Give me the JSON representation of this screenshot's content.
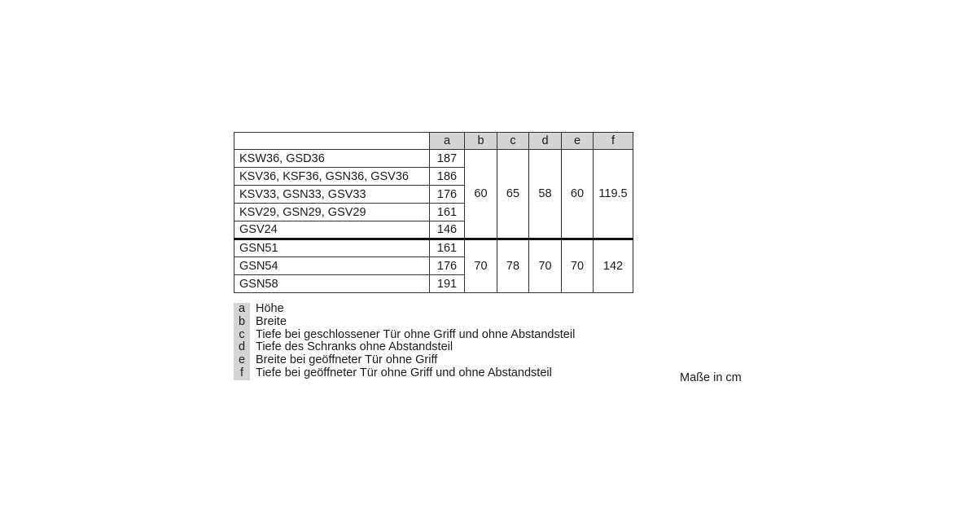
{
  "table": {
    "headers": [
      "",
      "a",
      "b",
      "c",
      "d",
      "e",
      "f"
    ],
    "group1": {
      "rows": [
        {
          "model": "KSW36, GSD36",
          "a": "187"
        },
        {
          "model": "KSV36, KSF36, GSN36, GSV36",
          "a": "186"
        },
        {
          "model": "KSV33, GSN33, GSV33",
          "a": "176"
        },
        {
          "model": "KSV29, GSN29, GSV29",
          "a": "161"
        },
        {
          "model": "GSV24",
          "a": "146"
        }
      ],
      "b": "60",
      "c": "65",
      "d": "58",
      "e": "60",
      "f": "119.5"
    },
    "group2": {
      "rows": [
        {
          "model": "GSN51",
          "a": "161"
        },
        {
          "model": "GSN54",
          "a": "176"
        },
        {
          "model": "GSN58",
          "a": "191"
        }
      ],
      "b": "70",
      "c": "78",
      "d": "70",
      "e": "70",
      "f": "142"
    }
  },
  "legend": [
    {
      "key": "a",
      "text": "Höhe"
    },
    {
      "key": "b",
      "text": "Breite"
    },
    {
      "key": "c",
      "text": "Tiefe bei geschlossener Tür ohne Griff und ohne Abstandsteil"
    },
    {
      "key": "d",
      "text": "Tiefe des Schranks ohne Abstandsteil"
    },
    {
      "key": "e",
      "text": "Breite bei geöffneter Tür ohne Griff"
    },
    {
      "key": "f",
      "text": "Tiefe bei geöffneter Tür ohne Griff und ohne Abstandsteil"
    }
  ],
  "units_note": "Maße in cm"
}
